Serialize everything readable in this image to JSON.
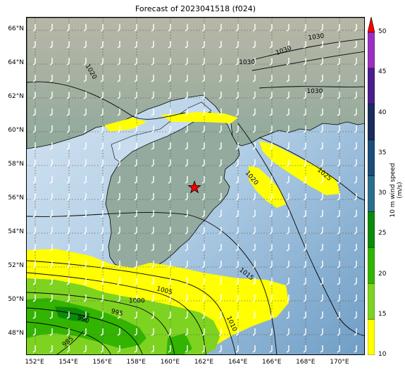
{
  "title": "Forecast of 2023041518 (f024)",
  "lat_labels": [
    {
      "text": "66°N",
      "lat": 66
    },
    {
      "text": "64°N",
      "lat": 64
    },
    {
      "text": "62°N",
      "lat": 62
    },
    {
      "text": "60°N",
      "lat": 60
    },
    {
      "text": "58°N",
      "lat": 58
    },
    {
      "text": "56°N",
      "lat": 56
    },
    {
      "text": "54°N",
      "lat": 54
    },
    {
      "text": "52°N",
      "lat": 52
    },
    {
      "text": "50°N",
      "lat": 50
    },
    {
      "text": "48°N",
      "lat": 48
    }
  ],
  "lon_labels": [
    {
      "text": "152°E",
      "lon": 152
    },
    {
      "text": "154°E",
      "lon": 154
    },
    {
      "text": "156°E",
      "lon": 156
    },
    {
      "text": "158°E",
      "lon": 158
    },
    {
      "text": "160°E",
      "lon": 160
    },
    {
      "text": "162°E",
      "lon": 162
    },
    {
      "text": "164°E",
      "lon": 164
    },
    {
      "text": "166°E",
      "lon": 166
    },
    {
      "text": "168°E",
      "lon": 168
    },
    {
      "text": "170°E",
      "lon": 170
    }
  ],
  "isobar_labels": [
    {
      "text": "1030",
      "lon": 168.6,
      "lat": 65.5,
      "angle": -8
    },
    {
      "text": "1030",
      "lon": 166.7,
      "lat": 64.7,
      "angle": -20
    },
    {
      "text": "1030",
      "lon": 164.5,
      "lat": 64.0,
      "angle": 0
    },
    {
      "text": "1030",
      "lon": 168.5,
      "lat": 62.3,
      "angle": 0
    },
    {
      "text": "1020",
      "lon": 155.2,
      "lat": 63.5,
      "angle": 60
    },
    {
      "text": "1020",
      "lon": 164.7,
      "lat": 57.2,
      "angle": 50
    },
    {
      "text": "1025",
      "lon": 169.0,
      "lat": 57.4,
      "angle": 40
    },
    {
      "text": "1015",
      "lon": 164.4,
      "lat": 51.5,
      "angle": 38
    },
    {
      "text": "1010",
      "lon": 163.5,
      "lat": 48.6,
      "angle": 65
    },
    {
      "text": "1005",
      "lon": 159.6,
      "lat": 50.5,
      "angle": 15
    },
    {
      "text": "1000",
      "lon": 158.0,
      "lat": 49.9,
      "angle": 0
    },
    {
      "text": "995",
      "lon": 156.8,
      "lat": 49.2,
      "angle": 15
    },
    {
      "text": "990",
      "lon": 154.8,
      "lat": 48.8,
      "angle": 20
    },
    {
      "text": "985",
      "lon": 154.0,
      "lat": 47.5,
      "angle": -40
    }
  ],
  "marker": {
    "name": "star",
    "lon": 161.4,
    "lat": 56.7,
    "color": "#ff0000"
  },
  "colorbar": {
    "label": "10 m wind speed (m/s)",
    "min": 10,
    "max": 50,
    "ticks": [
      "10",
      "15",
      "20",
      "25",
      "30",
      "35",
      "40",
      "45",
      "50"
    ],
    "colors": [
      "#ffff00",
      "#7ed321",
      "#32b400",
      "#0b8a0b",
      "#2a6e8e",
      "#1c4c7a",
      "#1a2c5a",
      "#4b1e8c",
      "#9b30c0"
    ],
    "extend_color": "#ff0000"
  },
  "map": {
    "lon_range": [
      151.5,
      171.5
    ],
    "lat_range": [
      46.75,
      66.75
    ],
    "ocean_color": "#9cc0dc",
    "land_color": "#9eb3a6",
    "coastline_color": "#000000",
    "grid": true
  }
}
